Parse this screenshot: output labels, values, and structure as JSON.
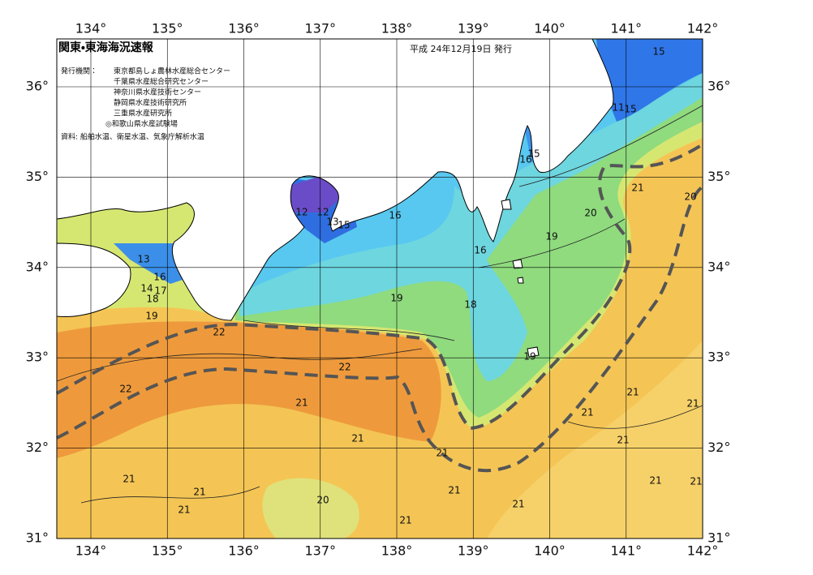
{
  "header": {
    "title": "関東・東海海況速報",
    "date": "平成 24年12月19日 発行",
    "issuer_label": "発行機関：",
    "issuers": [
      "東京都島しょ農林水産総合センター",
      "千葉県水産総合研究センター",
      "神奈川県水産技術センター",
      "静岡県水産技術研究所",
      "三重県水産研究所",
      "◎和歌山県水産試験場"
    ],
    "source": "資料: 船舶水温、衛星水温、気象庁解析水温"
  },
  "map": {
    "lon_ticks": [
      {
        "value": 134,
        "label": "134°"
      },
      {
        "value": 135,
        "label": "135°"
      },
      {
        "value": 136,
        "label": "136°"
      },
      {
        "value": 137,
        "label": "137°"
      },
      {
        "value": 138,
        "label": "138°"
      },
      {
        "value": 139,
        "label": "139°"
      },
      {
        "value": 140,
        "label": "140°"
      },
      {
        "value": 141,
        "label": "141°"
      },
      {
        "value": 142,
        "label": "142°"
      }
    ],
    "lat_ticks": [
      {
        "value": 31,
        "label": "31°"
      },
      {
        "value": 32,
        "label": "32°"
      },
      {
        "value": 33,
        "label": "33°"
      },
      {
        "value": 34,
        "label": "34°"
      },
      {
        "value": 35,
        "label": "35°"
      },
      {
        "value": 36,
        "label": "36°"
      }
    ],
    "contour_labels": [
      15,
      11,
      15,
      15,
      16,
      21,
      20,
      12,
      12,
      13,
      15,
      16,
      20,
      19,
      16,
      13,
      16,
      14,
      17,
      18,
      19,
      18,
      19,
      22,
      19,
      22,
      22,
      21,
      21,
      21,
      21,
      21,
      21,
      21,
      21,
      21,
      21,
      21,
      21,
      20,
      21,
      21,
      21
    ]
  }
}
